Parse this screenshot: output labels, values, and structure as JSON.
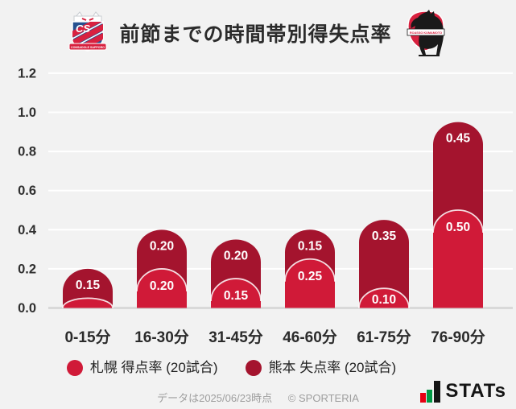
{
  "header": {
    "title": "前節までの時間帯別得失点率",
    "left_logo": "consadole-sapporo-crest",
    "right_logo": "roasso-kumamoto-crest"
  },
  "chart_data": {
    "type": "bar",
    "stacked": true,
    "title": "前節までの時間帯別得失点率",
    "categories": [
      "0-15分",
      "16-30分",
      "31-45分",
      "46-60分",
      "61-75分",
      "76-90分"
    ],
    "series": [
      {
        "name": "札幌 得点率 (20試合)",
        "color": "#d01a38",
        "values": [
          0.05,
          0.2,
          0.15,
          0.25,
          0.1,
          0.5
        ]
      },
      {
        "name": "熊本 失点率 (20試合)",
        "color": "#a4142e",
        "values": [
          0.15,
          0.2,
          0.2,
          0.15,
          0.35,
          0.45
        ]
      }
    ],
    "xlabel": "",
    "ylabel": "",
    "ylim": [
      0,
      1.2
    ],
    "yticks": [
      "0.0",
      "0.2",
      "0.4",
      "0.6",
      "0.8",
      "1.0",
      "1.2"
    ],
    "grid": true,
    "value_labels": true,
    "legend_position": "bottom"
  },
  "legend": {
    "items": [
      {
        "label": "札幌 得点率 (20試合)",
        "color": "#d01a38"
      },
      {
        "label": "熊本 失点率 (20試合)",
        "color": "#a4142e"
      }
    ]
  },
  "footer": {
    "data_note": "データは2025/06/23時点",
    "copyright": "© SPORTERIA",
    "stats_logo_text": "STATs"
  },
  "colors": {
    "background": "#f2f2f2",
    "sapporo_red": "#d01a38",
    "kumamoto_red": "#a4142e",
    "gridline": "#ffffff",
    "baseline": "#d9d9d9",
    "axis_text": "#2f2f2f",
    "value_label_text": "#ffffff",
    "footer_text": "#9e9e9e"
  }
}
